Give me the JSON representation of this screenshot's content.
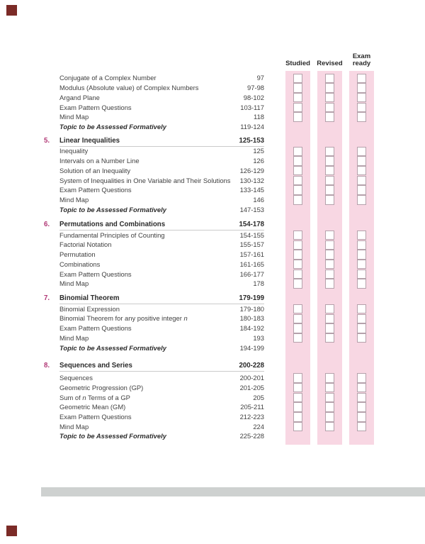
{
  "assessment": {
    "columns": [
      "Studied",
      "Revised",
      "Exam ready"
    ]
  },
  "colors": {
    "pink-band": "#f8d7e3",
    "checkbox-border": "#b5a1ab",
    "chapter-number": "#b13876",
    "heading-text": "#2a2a2a",
    "row-text": "#414141",
    "rule": "#cbcbcb",
    "bottom-bar": "#ced1d0",
    "corner-mark": "#7b2b27"
  },
  "icons": {
    "corner_top": "registration-mark",
    "corner_bottom": "registration-mark"
  },
  "toc": {
    "sections": [
      {
        "number": "",
        "title": "",
        "pages": "",
        "rows": [
          {
            "title": [
              {
                "t": "Conjugate of a Complex Number"
              }
            ],
            "pages": "97",
            "checkbox": true
          },
          {
            "title": [
              {
                "t": "Modulus (Absolute value) of Complex Numbers"
              }
            ],
            "pages": "97-98",
            "checkbox": true
          },
          {
            "title": [
              {
                "t": "Argand Plane"
              }
            ],
            "pages": "98-102",
            "checkbox": true
          },
          {
            "title": [
              {
                "t": "Exam Pattern Questions"
              }
            ],
            "pages": "103-117",
            "checkbox": true
          },
          {
            "title": [
              {
                "t": "Mind Map"
              }
            ],
            "pages": "118",
            "checkbox": true
          },
          {
            "title": [
              {
                "t": "Topic to be Assessed Formatively"
              }
            ],
            "pages": "119-124",
            "checkbox": false,
            "formative": true
          }
        ]
      },
      {
        "number": "5.",
        "title": "Linear Inequalities",
        "pages": "125-153",
        "rows": [
          {
            "title": [
              {
                "t": "Inequality"
              }
            ],
            "pages": "125",
            "checkbox": true
          },
          {
            "title": [
              {
                "t": "Intervals on a Number Line"
              }
            ],
            "pages": "126",
            "checkbox": true
          },
          {
            "title": [
              {
                "t": "Solution of an Inequality"
              }
            ],
            "pages": "126-129",
            "checkbox": true
          },
          {
            "title": [
              {
                "t": "System of Inequalities in One Variable and Their Solutions"
              }
            ],
            "pages": "130-132",
            "checkbox": true
          },
          {
            "title": [
              {
                "t": "Exam Pattern Questions"
              }
            ],
            "pages": "133-145",
            "checkbox": true
          },
          {
            "title": [
              {
                "t": "Mind Map"
              }
            ],
            "pages": "146",
            "checkbox": true
          },
          {
            "title": [
              {
                "t": "Topic to be Assessed Formatively"
              }
            ],
            "pages": "147-153",
            "checkbox": false,
            "formative": true
          }
        ]
      },
      {
        "number": "6.",
        "title": "Permutations and Combinations",
        "pages": "154-178",
        "rows": [
          {
            "title": [
              {
                "t": "Fundamental Principles of Counting"
              }
            ],
            "pages": "154-155",
            "checkbox": true
          },
          {
            "title": [
              {
                "t": "Factorial Notation"
              }
            ],
            "pages": "155-157",
            "checkbox": true
          },
          {
            "title": [
              {
                "t": "Permutation"
              }
            ],
            "pages": "157-161",
            "checkbox": true
          },
          {
            "title": [
              {
                "t": "Combinations"
              }
            ],
            "pages": "161-165",
            "checkbox": true
          },
          {
            "title": [
              {
                "t": "Exam Pattern Questions"
              }
            ],
            "pages": "166-177",
            "checkbox": true
          },
          {
            "title": [
              {
                "t": "Mind Map"
              }
            ],
            "pages": "178",
            "checkbox": true
          }
        ]
      },
      {
        "number": "7.",
        "title": "Binomial Theorem",
        "pages": "179-199",
        "rows": [
          {
            "title": [
              {
                "t": "Binomial Expression"
              }
            ],
            "pages": "179-180",
            "checkbox": true
          },
          {
            "title": [
              {
                "t": "Binomial Theorem for any positive integer "
              },
              {
                "t": "n",
                "i": true
              }
            ],
            "pages": "180-183",
            "checkbox": true
          },
          {
            "title": [
              {
                "t": "Exam Pattern Questions"
              }
            ],
            "pages": "184-192",
            "checkbox": true
          },
          {
            "title": [
              {
                "t": "Mind Map"
              }
            ],
            "pages": "193",
            "checkbox": true
          },
          {
            "title": [
              {
                "t": "Topic to be Assessed Formatively"
              }
            ],
            "pages": "194-199",
            "checkbox": false,
            "formative": true
          }
        ]
      },
      {
        "number": "8.",
        "title": "Sequences and Series",
        "pages": "200-228",
        "rows": [
          {
            "title": [
              {
                "t": "Sequences"
              }
            ],
            "pages": "200-201",
            "checkbox": true
          },
          {
            "title": [
              {
                "t": "Geometric Progression (GP)"
              }
            ],
            "pages": "201-205",
            "checkbox": true
          },
          {
            "title": [
              {
                "t": "Sum of "
              },
              {
                "t": "n",
                "i": true
              },
              {
                "t": " Terms of a GP"
              }
            ],
            "pages": "205",
            "checkbox": true
          },
          {
            "title": [
              {
                "t": "Geometric Mean (GM)"
              }
            ],
            "pages": "205-211",
            "checkbox": true
          },
          {
            "title": [
              {
                "t": "Exam Pattern Questions"
              }
            ],
            "pages": "212-223",
            "checkbox": true
          },
          {
            "title": [
              {
                "t": "Mind Map"
              }
            ],
            "pages": "224",
            "checkbox": true
          }
        ]
      },
      {
        "number": "",
        "title": "",
        "pages": "",
        "appendix": true,
        "rows": [
          {
            "title": [
              {
                "t": "Topic to be Assessed Formatively"
              }
            ],
            "pages": "225-228",
            "checkbox": false,
            "formative": true
          }
        ]
      }
    ]
  }
}
